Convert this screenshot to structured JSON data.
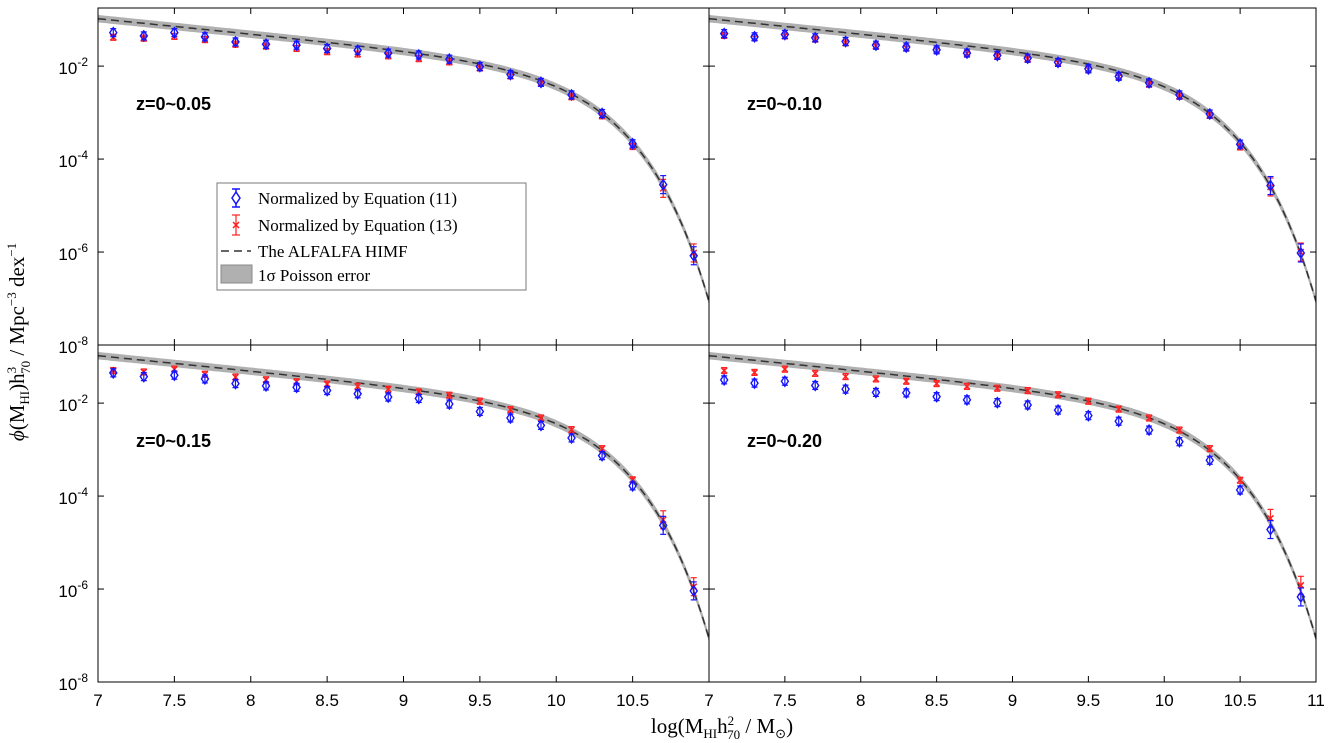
{
  "chart_data": {
    "type": "scatter",
    "xlabel": {
      "prefix": "log(M",
      "sub1": "HI",
      "mid": "h",
      "sup2": "2",
      "sub2": "70",
      "suffix": " / M",
      "sun": "⊙",
      "close": ")"
    },
    "ylabel": {
      "phi": "ϕ",
      "open": "(M",
      "sub1": "HI",
      "mid": ")h",
      "sup3": "3",
      "sub70": "70",
      "rest": " / Mpc",
      "sup_m3": "−3",
      "dex": " dex",
      "sup_m1": "−1"
    },
    "x_ticks_left": [
      "7",
      "7.5",
      "8",
      "8.5",
      "9",
      "9.5",
      "10",
      "10.5",
      "7"
    ],
    "x_ticks_right": [
      "7.5",
      "8",
      "8.5",
      "9",
      "9.5",
      "10",
      "10.5",
      "11"
    ],
    "y_tick_values": [
      -2,
      -4,
      -6,
      -8
    ],
    "xlim": [
      7,
      11
    ],
    "ylim_log10": [
      -8,
      -0.75
    ],
    "legend": {
      "entries": [
        "Normalized by Equation (11)",
        "Normalized by Equation (13)",
        "The ALFALFA HIMF",
        "1σ Poisson error"
      ],
      "colors": [
        "#1414ff",
        "#ff2020",
        "#333333",
        "#b0b0b0"
      ]
    },
    "himf": {
      "phi_star": 0.0048,
      "m_star_log": 9.96,
      "alpha": -1.33,
      "band_dex": 0.08
    },
    "x_points": [
      7.1,
      7.3,
      7.5,
      7.7,
      7.9,
      8.1,
      8.3,
      8.5,
      8.7,
      8.9,
      9.1,
      9.3,
      9.5,
      9.7,
      9.9,
      10.1,
      10.3,
      10.5,
      10.7,
      10.9
    ],
    "panels": [
      {
        "label": "z=0~0.05",
        "blue_log10": [
          -1.28,
          -1.35,
          -1.28,
          -1.37,
          -1.48,
          -1.53,
          -1.55,
          -1.62,
          -1.66,
          -1.72,
          -1.76,
          -1.85,
          -2.01,
          -2.18,
          -2.35,
          -2.62,
          -3.02,
          -3.67,
          -4.55,
          -6.08
        ],
        "red_log10": [
          -1.38,
          -1.4,
          -1.36,
          -1.43,
          -1.53,
          -1.57,
          -1.62,
          -1.69,
          -1.74,
          -1.78,
          -1.84,
          -1.91,
          -2.04,
          -2.21,
          -2.37,
          -2.66,
          -3.07,
          -3.73,
          -4.63,
          -6.02
        ]
      },
      {
        "label": "z=0~0.10",
        "blue_log10": [
          -1.3,
          -1.37,
          -1.32,
          -1.39,
          -1.47,
          -1.55,
          -1.59,
          -1.65,
          -1.72,
          -1.77,
          -1.83,
          -1.92,
          -2.06,
          -2.22,
          -2.36,
          -2.62,
          -3.03,
          -3.68,
          -4.57,
          -6.02
        ],
        "red_log10": [
          -1.34,
          -1.39,
          -1.35,
          -1.42,
          -1.5,
          -1.57,
          -1.61,
          -1.66,
          -1.73,
          -1.79,
          -1.85,
          -1.93,
          -2.07,
          -2.23,
          -2.39,
          -2.65,
          -3.06,
          -3.74,
          -4.6,
          -6.0
        ]
      },
      {
        "label": "z=0~0.15",
        "blue_log10": [
          -1.35,
          -1.43,
          -1.4,
          -1.48,
          -1.58,
          -1.63,
          -1.66,
          -1.73,
          -1.8,
          -1.87,
          -1.9,
          -2.02,
          -2.18,
          -2.32,
          -2.48,
          -2.75,
          -3.13,
          -3.78,
          -4.63,
          -6.04
        ],
        "red_log10": [
          -1.3,
          -1.33,
          -1.27,
          -1.38,
          -1.44,
          -1.5,
          -1.54,
          -1.59,
          -1.64,
          -1.7,
          -1.76,
          -1.83,
          -1.96,
          -2.14,
          -2.32,
          -2.57,
          -2.98,
          -3.65,
          -4.51,
          -5.95
        ]
      },
      {
        "label": "z=0~0.20",
        "blue_log10": [
          -1.5,
          -1.57,
          -1.53,
          -1.62,
          -1.7,
          -1.77,
          -1.78,
          -1.86,
          -1.93,
          -1.99,
          -2.04,
          -2.15,
          -2.27,
          -2.39,
          -2.58,
          -2.83,
          -3.23,
          -3.87,
          -4.72,
          -6.17
        ],
        "red_log10": [
          -1.3,
          -1.34,
          -1.27,
          -1.36,
          -1.43,
          -1.48,
          -1.53,
          -1.58,
          -1.64,
          -1.68,
          -1.73,
          -1.82,
          -1.96,
          -2.13,
          -2.32,
          -2.58,
          -2.98,
          -3.66,
          -4.48,
          -5.92
        ]
      }
    ]
  }
}
